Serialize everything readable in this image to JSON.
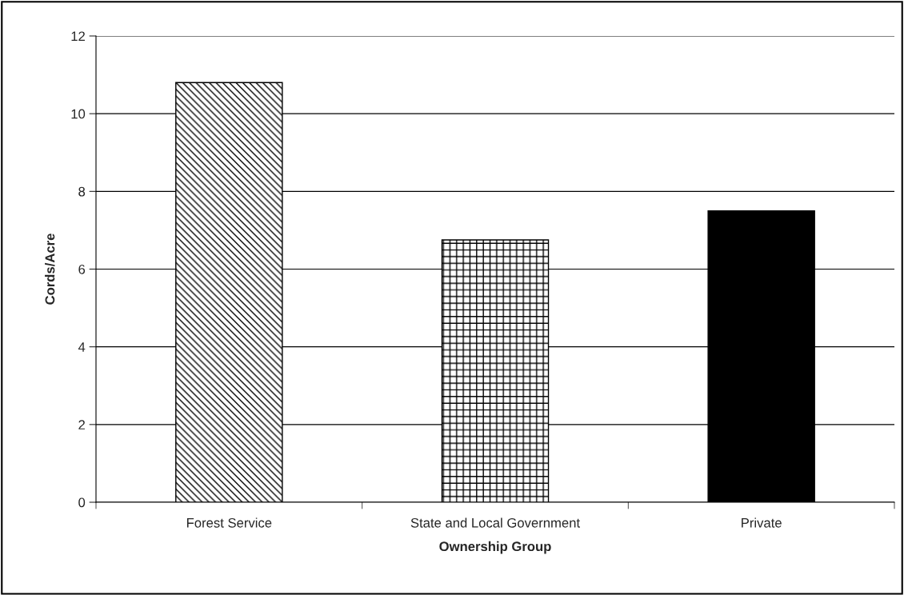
{
  "chart_data": {
    "type": "bar",
    "xlabel": "Ownership Group",
    "ylabel": "Cords/Acre",
    "categories": [
      "Forest Service",
      "State and Local Government",
      "Private"
    ],
    "values": [
      10.8,
      6.75,
      7.5
    ],
    "colors": [
      "#000000",
      "#000000",
      "#000000"
    ],
    "ylim": [
      0,
      12
    ],
    "yticks": [
      0,
      2,
      4,
      6,
      8,
      10,
      12
    ],
    "grid": "y",
    "legend": false
  }
}
